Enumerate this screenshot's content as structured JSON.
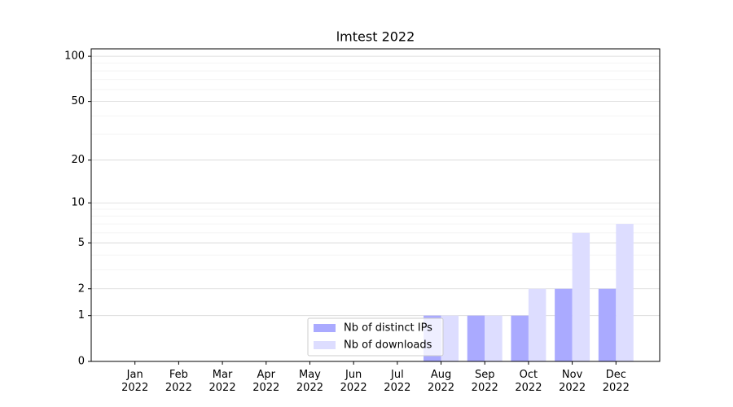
{
  "chart_data": {
    "type": "bar",
    "title": "lmtest 2022",
    "categories": [
      "Jan 2022",
      "Feb 2022",
      "Mar 2022",
      "Apr 2022",
      "May 2022",
      "Jun 2022",
      "Jul 2022",
      "Aug 2022",
      "Sep 2022",
      "Oct 2022",
      "Nov 2022",
      "Dec 2022"
    ],
    "series": [
      {
        "name": "Nb of distinct IPs",
        "color": "#aaaaff",
        "values": [
          0,
          0,
          0,
          0,
          0,
          0,
          0,
          1,
          1,
          1,
          2,
          2
        ]
      },
      {
        "name": "Nb of downloads",
        "color": "#ddddff",
        "values": [
          0,
          0,
          0,
          0,
          0,
          0,
          0,
          1,
          1,
          2,
          6,
          7
        ]
      }
    ],
    "yscale": "log1p",
    "ylim": [
      0,
      112
    ],
    "yticks": [
      0,
      1,
      2,
      5,
      10,
      20,
      50,
      100
    ],
    "yminorticks": [
      3,
      4,
      6,
      7,
      8,
      9,
      30,
      40,
      60,
      70,
      80,
      90
    ],
    "grid": true,
    "legend_loc": "lower center"
  }
}
